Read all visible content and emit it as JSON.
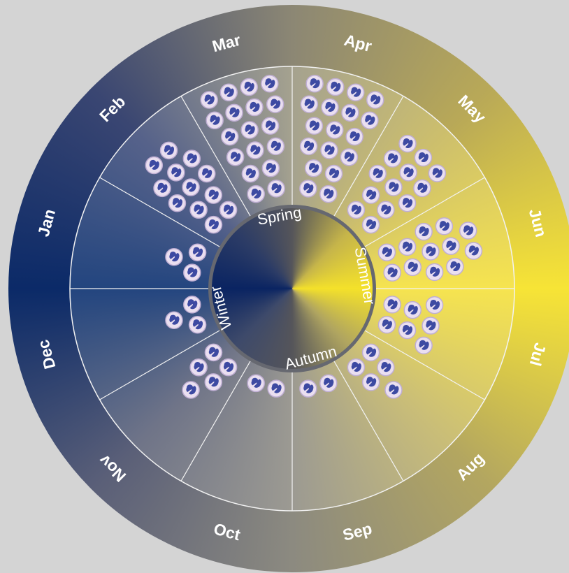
{
  "months": [
    {
      "label": "Jan",
      "count": 3
    },
    {
      "label": "Feb",
      "count": 12
    },
    {
      "label": "Mar",
      "count": 18
    },
    {
      "label": "Apr",
      "count": 18
    },
    {
      "label": "May",
      "count": 13
    },
    {
      "label": "Jun",
      "count": 12
    },
    {
      "label": "Jul",
      "count": 7
    },
    {
      "label": "Aug",
      "count": 5
    },
    {
      "label": "Sep",
      "count": 2
    },
    {
      "label": "Oct",
      "count": 2
    },
    {
      "label": "Nov",
      "count": 5
    },
    {
      "label": "Dec",
      "count": 3
    }
  ],
  "seasons": [
    "Winter",
    "Spring",
    "Summer",
    "Autumn"
  ]
}
